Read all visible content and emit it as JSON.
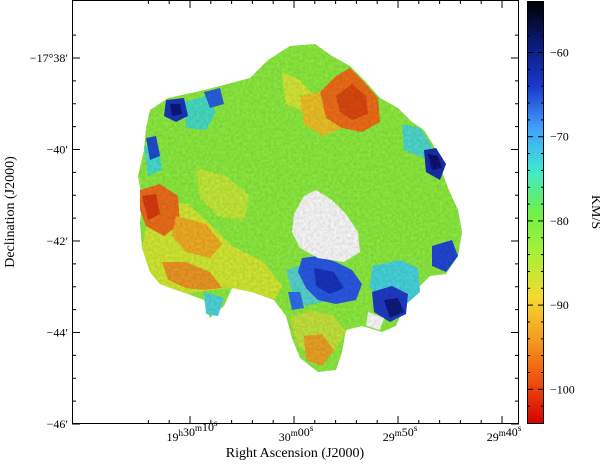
{
  "chart_data": {
    "type": "heatmap",
    "title": "",
    "xlabel": "Right Ascension (J2000)",
    "ylabel": "Declination (J2000)",
    "colorbar_label": "KM/S",
    "x_ticks": [
      {
        "ra_s": 10,
        "h": "19",
        "m": "30",
        "s": "10"
      },
      {
        "ra_s": 0,
        "m": "30",
        "s": "00"
      },
      {
        "ra_s": -10,
        "m": "29",
        "s": "50"
      },
      {
        "ra_s": -20,
        "m": "29",
        "s": "40"
      }
    ],
    "y_ticks": [
      {
        "dec": -38,
        "label": "−17°38′"
      },
      {
        "dec": -40,
        "label": "−40′"
      },
      {
        "dec": -42,
        "label": "−42′"
      },
      {
        "dec": -44,
        "label": "−44′"
      },
      {
        "dec": -46,
        "label": "−46′"
      }
    ],
    "colorbar": {
      "range": [
        -104,
        -54
      ],
      "ticks": [
        {
          "value": -60,
          "label": "−60"
        },
        {
          "value": -70,
          "label": "−70"
        },
        {
          "value": -80,
          "label": "−80"
        },
        {
          "value": -90,
          "label": "−90"
        },
        {
          "value": -100,
          "label": "−100"
        }
      ],
      "colormap": [
        "#d40000",
        "#ee5010",
        "#f49c20",
        "#f4d830",
        "#a8f038",
        "#70f048",
        "#40e8d0",
        "#40a0ff",
        "#1838c8",
        "#0a1a78",
        "#000000"
      ]
    },
    "regions": [
      {
        "name": "green-core",
        "ra": 0,
        "dec": -40.8,
        "value": -80
      },
      {
        "name": "orange-ne",
        "ra": -7,
        "dec": -39,
        "value": -89
      },
      {
        "name": "orange-w",
        "ra": 12,
        "dec": -41.4,
        "value": -90
      },
      {
        "name": "blue-s",
        "ra": -5,
        "dec": -43.4,
        "value": -71
      },
      {
        "name": "blue-se",
        "ra": -13,
        "dec": -43.6,
        "value": -66
      },
      {
        "name": "blue-nw",
        "ra": 14,
        "dec": -39.3,
        "value": -66
      },
      {
        "name": "blue-e",
        "ra": -16,
        "dec": -40.2,
        "value": -64
      },
      {
        "name": "cavity",
        "ra": -4,
        "dec": -41.8,
        "value": null
      }
    ]
  }
}
